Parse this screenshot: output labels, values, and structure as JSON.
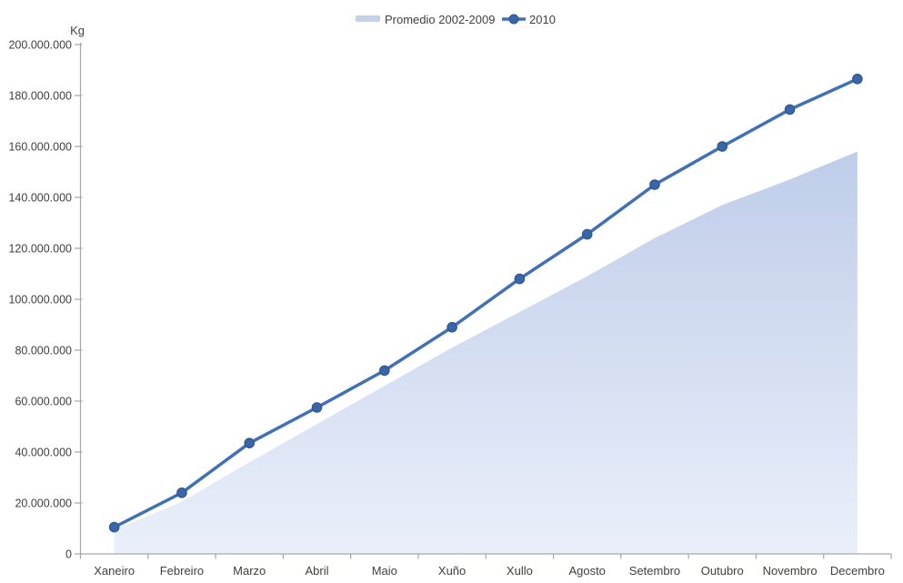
{
  "chart_data": {
    "type": "area",
    "title": "",
    "categories": [
      "Xaneiro",
      "Febreiro",
      "Marzo",
      "Abril",
      "Maio",
      "Xuño",
      "Xullo",
      "Agosto",
      "Setembro",
      "Outubro",
      "Novembro",
      "Decembro"
    ],
    "series": [
      {
        "name": "Promedio 2002-2009",
        "type": "area",
        "color_top": "#bfcde9",
        "color_bottom": "#eaeffa",
        "values": [
          9500000,
          20500000,
          36000000,
          51000000,
          66000000,
          81000000,
          95000000,
          109000000,
          124000000,
          137000000,
          147000000,
          158000000
        ]
      },
      {
        "name": "2010",
        "type": "line",
        "color": "#4170b4",
        "marker_color": "#3a65a8",
        "marker_edge_color": "#2d5691",
        "values": [
          10500000,
          24000000,
          43500000,
          57500000,
          72000000,
          89000000,
          108000000,
          125500000,
          145000000,
          160000000,
          174500000,
          186500000
        ]
      }
    ],
    "xlabel": "",
    "ylabel": "Kg",
    "ylim": [
      0,
      200000000
    ],
    "y_step": 20000000,
    "y_tick_labels": [
      "200.000.000",
      "180.000.000",
      "160.000.000",
      "140.000.000",
      "120.000.000",
      "100.000.000",
      "80.000.000",
      "60.000.000",
      "40.000.000",
      "20.000.000",
      "0"
    ],
    "grid": false,
    "legend_position": "top-center",
    "axis_color": "#a6a6a6",
    "text_color": "#3f3f3f"
  }
}
